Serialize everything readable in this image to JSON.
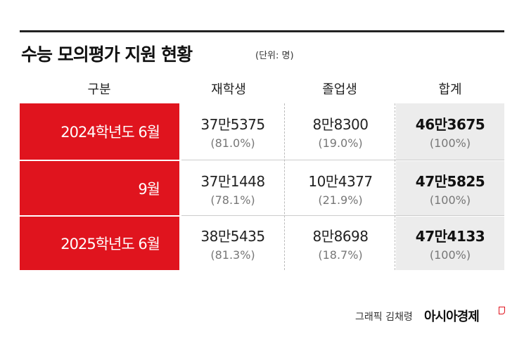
{
  "title": "수능 모의평가 지원 현황",
  "unit": "(단위: 명)",
  "header": [
    "구분",
    "재학생",
    "졸업생",
    "합계"
  ],
  "rows": [
    {
      "label": "2024학년도 6월",
      "cells": [
        {
          "number": "37만5375",
          "percent": "(81.0%)"
        },
        {
          "number": "8만8300",
          "percent": "(19.0%)"
        },
        {
          "number": "46만3675",
          "percent": "(100%)"
        }
      ]
    },
    {
      "label": "9월",
      "cells": [
        {
          "number": "37만1448",
          "percent": "(78.1%)"
        },
        {
          "number": "10만4377",
          "percent": "(21.9%)"
        },
        {
          "number": "47만5825",
          "percent": "(100%)"
        }
      ]
    },
    {
      "label": "2025학년도 6월",
      "cells": [
        {
          "number": "38만5435",
          "percent": "(81.3%)"
        },
        {
          "number": "8만8698",
          "percent": "(18.7%)"
        },
        {
          "number": "47만4133",
          "percent": "(100%)"
        }
      ]
    }
  ],
  "footer": {
    "credit": "그래픽 김채령",
    "brand": "아시아경제"
  }
}
